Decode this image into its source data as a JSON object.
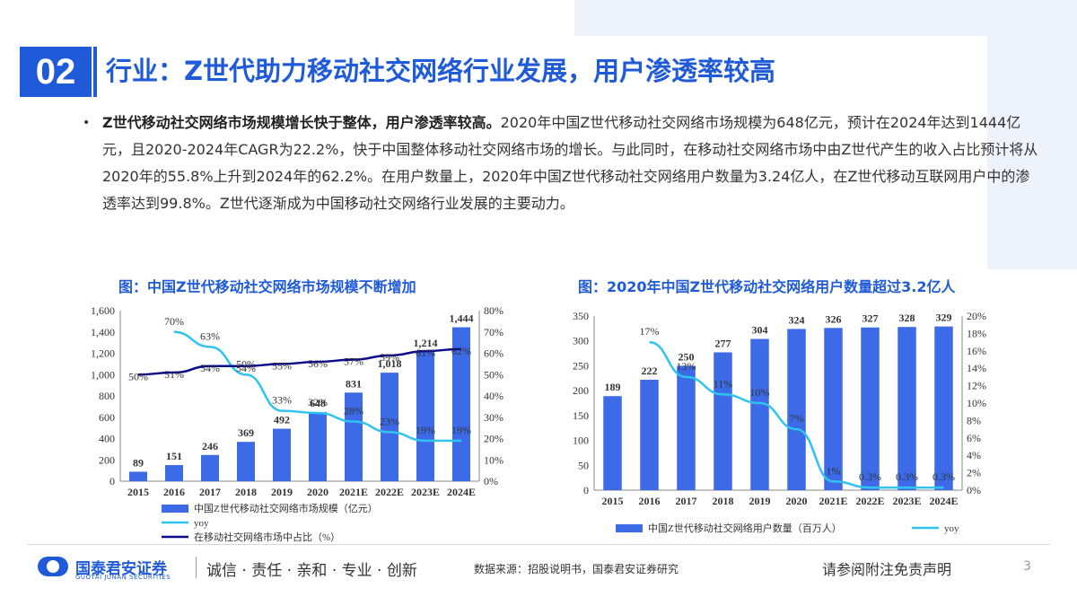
{
  "header": {
    "section_number": "02",
    "title": "行业：Z世代助力移动社交网络行业发展，用户渗透率较高"
  },
  "body": {
    "bullet": "•",
    "lead": "Z世代移动社交网络市场规模增长快于整体，用户渗透率较高。",
    "text": "2020年中国Z世代移动社交网络市场规模为648亿元，预计在2024年达到1444亿元，且2020-2024年CAGR为22.2%，快于中国整体移动社交网络市场的增长。与此同时，在移动社交网络市场中由Z世代产生的收入占比预计将从2020年的55.8%上升到2024年的62.2%。在用户数量上，2020年中国Z世代移动社交网络用户数量为3.24亿人，在Z世代移动互联网用户中的渗透率达到99.8%。Z世代逐渐成为中国移动社交网络行业发展的主要动力。"
  },
  "chart_data": [
    {
      "type": "bar",
      "title": "图：中国Z世代移动社交网络市场规模不断增加",
      "categories": [
        "2015",
        "2016",
        "2017",
        "2018",
        "2019",
        "2020",
        "2021E",
        "2022E",
        "2023E",
        "2024E"
      ],
      "series": [
        {
          "name": "中国Z世代移动社交网络市场规模（亿元）",
          "type": "bar",
          "axis": "left",
          "color": "#3d6be8",
          "values": [
            89,
            151,
            246,
            369,
            492,
            648,
            831,
            1018,
            1214,
            1444
          ],
          "labels": [
            "89",
            "151",
            "246",
            "369",
            "492",
            "648",
            "831",
            "1,018",
            "1,214",
            "1,444"
          ]
        },
        {
          "name": "yoy",
          "type": "line",
          "axis": "right",
          "color": "#2fc3f0",
          "values": [
            null,
            70,
            63,
            50,
            33,
            32,
            28,
            23,
            19,
            19
          ],
          "labels": [
            "",
            "70%",
            "63%",
            "50%",
            "33%",
            "32%",
            "28%",
            "23%",
            "19%",
            "19%"
          ]
        },
        {
          "name": "在移动社交网络市场中占比（%）",
          "type": "line",
          "axis": "right",
          "color": "#0a0a8c",
          "values": [
            50,
            51,
            54,
            54,
            55,
            56,
            57,
            59,
            61,
            62
          ],
          "labels": [
            "50%",
            "51%",
            "54%",
            "54%",
            "55%",
            "56%",
            "57%",
            "59%",
            "61%",
            "62%"
          ]
        }
      ],
      "yleft": {
        "min": 0,
        "max": 1600,
        "step": 200,
        "ticks": [
          "0",
          "200",
          "400",
          "600",
          "800",
          "1,000",
          "1,200",
          "1,400",
          "1,600"
        ]
      },
      "yright": {
        "min": 0,
        "max": 80,
        "step": 10,
        "ticks": [
          "0%",
          "10%",
          "20%",
          "30%",
          "40%",
          "50%",
          "60%",
          "70%",
          "80%"
        ]
      },
      "legend_position": "bottom-left"
    },
    {
      "type": "bar",
      "title": "图：2020年中国Z世代移动社交网络用户数量超过3.2亿人",
      "categories": [
        "2015",
        "2016",
        "2017",
        "2018",
        "2019",
        "2020",
        "2021E",
        "2022E",
        "2023E",
        "2024E"
      ],
      "series": [
        {
          "name": "中国Z世代移动社交网络用户数量（百万人）",
          "type": "bar",
          "axis": "left",
          "color": "#3d6be8",
          "values": [
            189,
            222,
            250,
            277,
            304,
            324,
            326,
            327,
            328,
            329
          ],
          "labels": [
            "189",
            "222",
            "250",
            "277",
            "304",
            "324",
            "326",
            "327",
            "328",
            "329"
          ]
        },
        {
          "name": "yoy",
          "type": "line",
          "axis": "right",
          "color": "#2fc3f0",
          "values": [
            null,
            17,
            13,
            11,
            10,
            7,
            1,
            0.3,
            0.3,
            0.3
          ],
          "labels": [
            "",
            "17%",
            "13%",
            "11%",
            "10%",
            "7%",
            "1%",
            "0.3%",
            "0.3%",
            "0.3%"
          ]
        }
      ],
      "yleft": {
        "min": 0,
        "max": 350,
        "step": 50,
        "ticks": [
          "0",
          "50",
          "100",
          "150",
          "200",
          "250",
          "300",
          "350"
        ]
      },
      "yright": {
        "min": 0,
        "max": 20,
        "step": 2,
        "ticks": [
          "0%",
          "2%",
          "4%",
          "6%",
          "8%",
          "10%",
          "12%",
          "14%",
          "16%",
          "18%",
          "20%"
        ]
      },
      "legend_position": "bottom"
    }
  ],
  "footer": {
    "company": "国泰君安证券",
    "company_en": "GUOTAI JUNAN SECURITIES",
    "slogan": "诚信 · 责任 · 亲和 · 专业 · 创新",
    "source": "数据来源：招股说明书，国泰君安证券研究",
    "disclaimer": "请参阅附注免责声明",
    "page": "3"
  }
}
